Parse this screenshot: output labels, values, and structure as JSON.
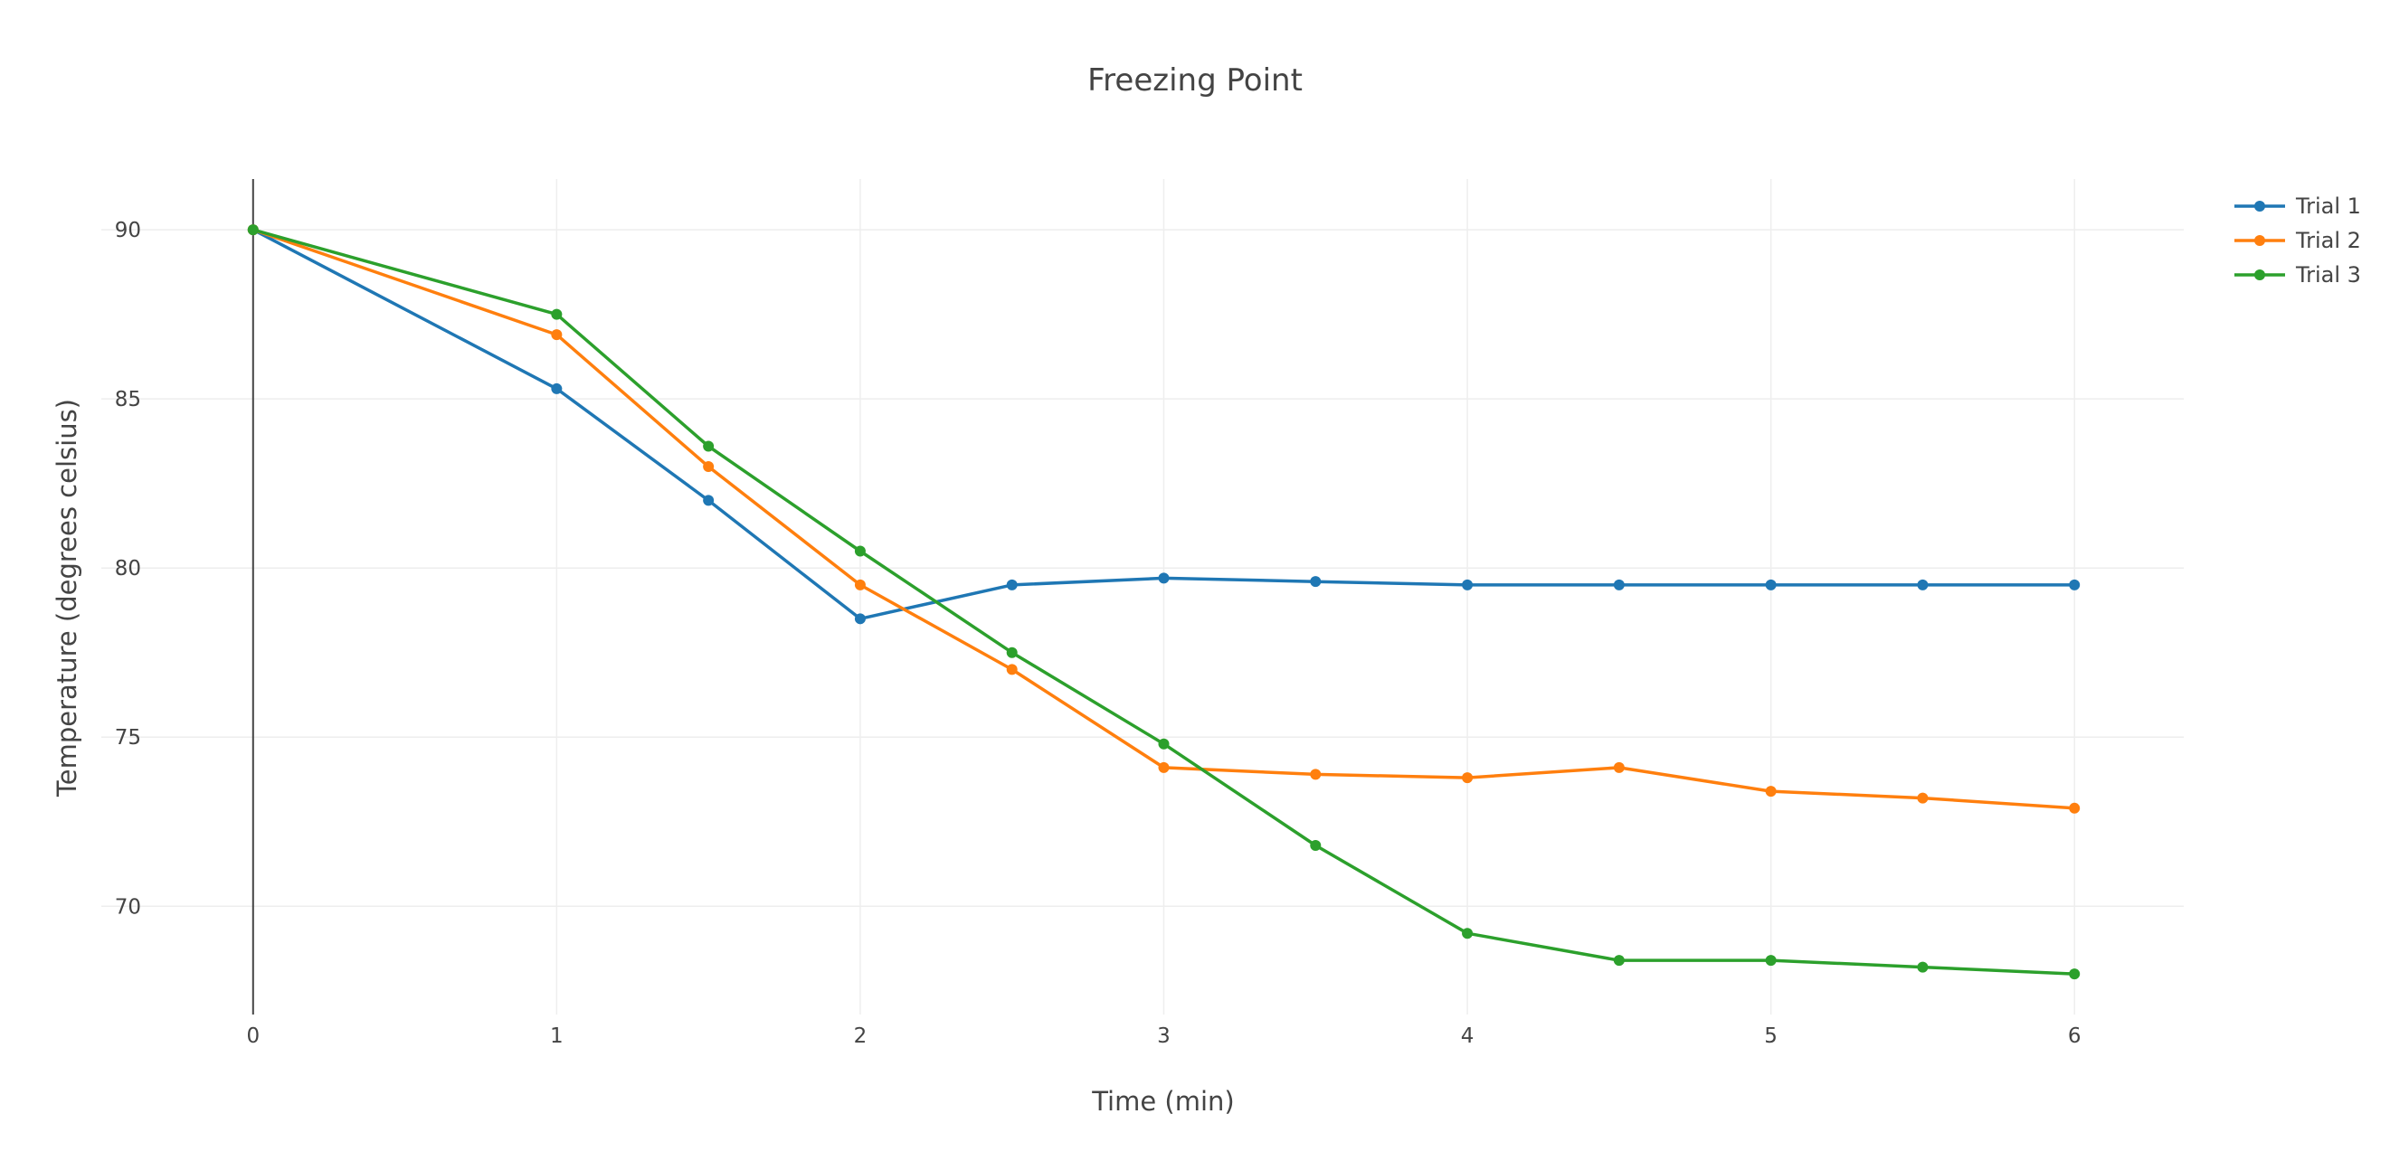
{
  "chart_data": {
    "type": "line",
    "title": "Freezing Point",
    "xlabel": "Time (min)",
    "ylabel": "Temperature (degrees celsius)",
    "xlim": [
      -0.5,
      6.36
    ],
    "ylim": [
      66.8,
      91.5
    ],
    "x_ticks": [
      0,
      1,
      2,
      3,
      4,
      5,
      6
    ],
    "x_tick_labels": [
      "0",
      "1",
      "2",
      "3",
      "4",
      "5",
      "6"
    ],
    "y_ticks": [
      70,
      75,
      80,
      85,
      90
    ],
    "y_tick_labels": [
      "70",
      "75",
      "80",
      "85",
      "90"
    ],
    "grid": true,
    "legend_position": "top-right",
    "x": [
      0,
      1,
      1.5,
      2,
      2.5,
      3,
      3.5,
      4,
      4.5,
      5,
      5.5,
      6
    ],
    "series": [
      {
        "name": "Trial 1",
        "color": "#1f77b4",
        "values": [
          90,
          85.3,
          82.0,
          78.5,
          79.5,
          79.7,
          79.6,
          79.5,
          79.5,
          79.5,
          79.5,
          79.5
        ]
      },
      {
        "name": "Trial 2",
        "color": "#ff7f0e",
        "values": [
          90,
          86.9,
          83.0,
          79.5,
          77.0,
          74.1,
          73.9,
          73.8,
          74.1,
          73.4,
          73.2,
          72.9
        ]
      },
      {
        "name": "Trial 3",
        "color": "#2ca02c",
        "values": [
          90,
          87.5,
          83.6,
          80.5,
          77.5,
          74.8,
          71.8,
          69.2,
          68.4,
          68.4,
          68.2,
          68.0
        ]
      }
    ]
  }
}
